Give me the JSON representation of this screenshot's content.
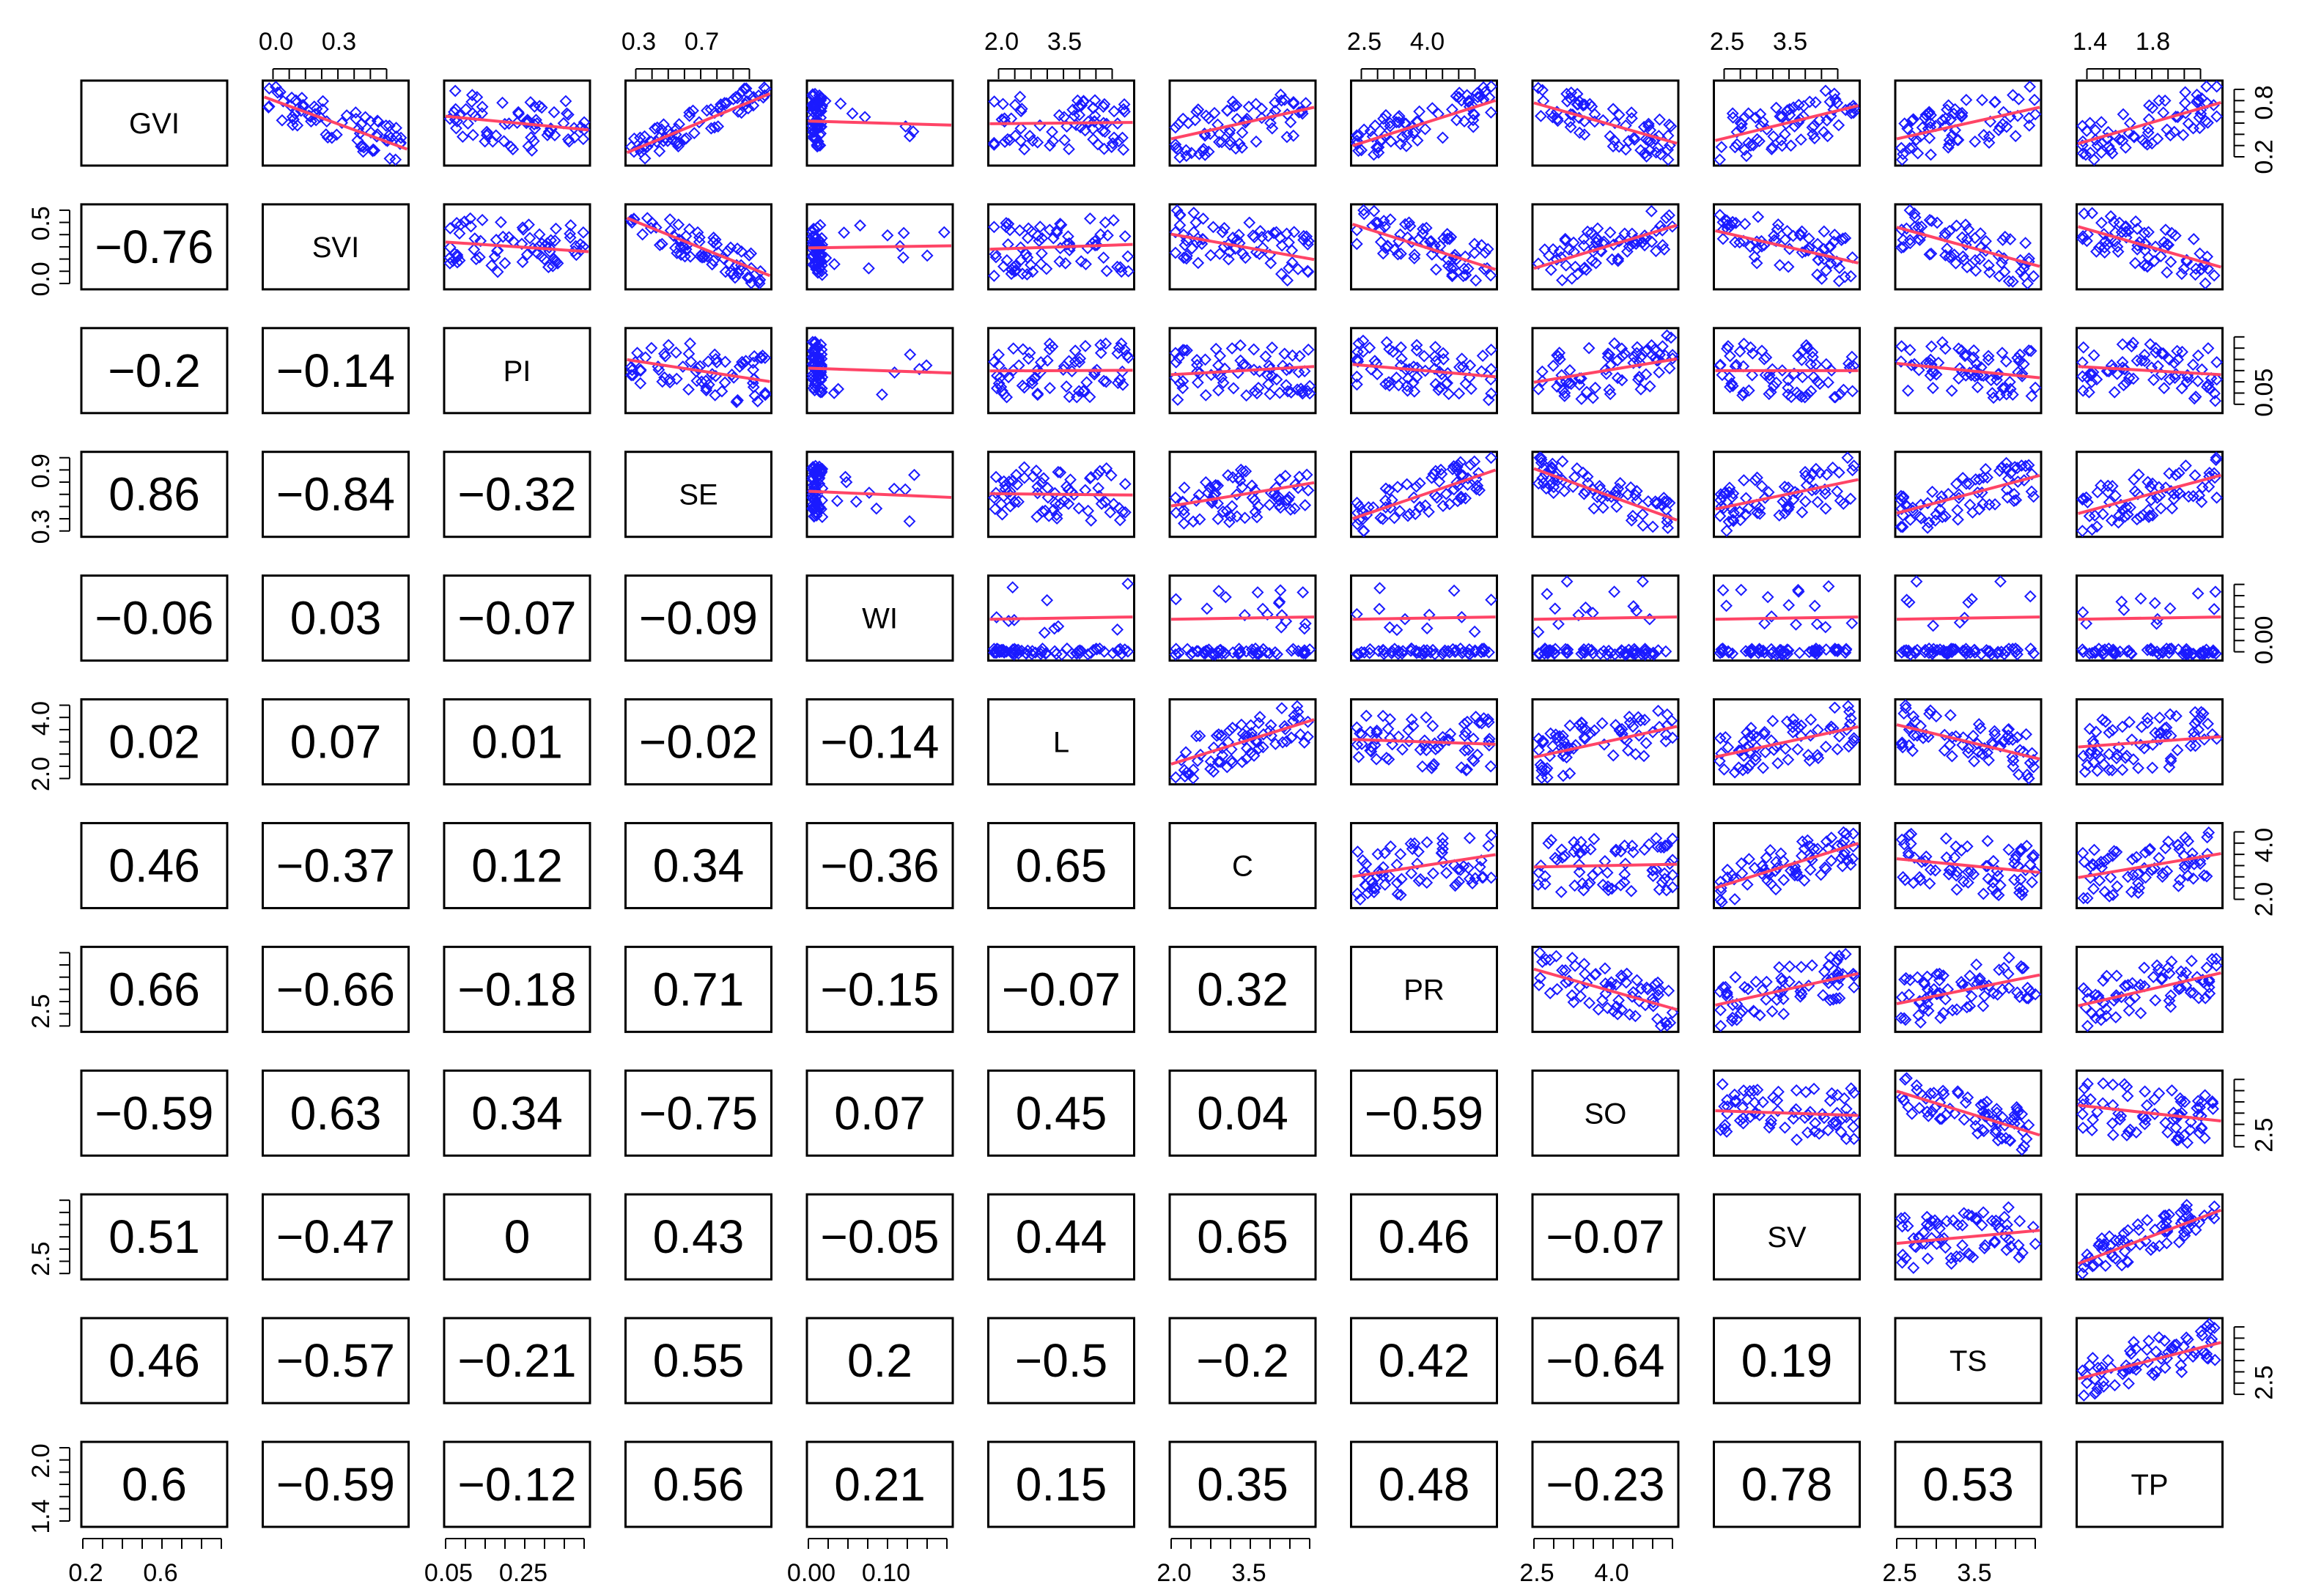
{
  "chart_data": {
    "type": "scatter",
    "variables": [
      "GVI",
      "SVI",
      "PI",
      "SE",
      "WI",
      "L",
      "C",
      "PR",
      "SO",
      "SV",
      "TS",
      "TP"
    ],
    "axis_labels": [
      [
        "0.2",
        "0.6"
      ],
      [
        "0.0",
        "0.3"
      ],
      [
        "0.05",
        "0.25"
      ],
      [
        "0.3",
        "0.7"
      ],
      [
        "0.00",
        "0.10"
      ],
      [
        "2.0",
        "3.5"
      ],
      [
        "2.0",
        "3.5"
      ],
      [
        "2.5",
        "4.0"
      ],
      [
        "2.5",
        "4.0"
      ],
      [
        "2.5",
        "3.5"
      ],
      [
        "2.5",
        "3.5"
      ],
      [
        "1.4",
        "1.8"
      ]
    ],
    "right_axis_labels": {
      "GVI": [
        "0.2",
        "0.8"
      ],
      "PI": [
        "0.05"
      ],
      "WI": [
        "0.00"
      ],
      "C": [
        "2.0",
        "4.0"
      ],
      "SO": [
        "2.5"
      ],
      "TS": [
        "2.5"
      ]
    },
    "left_axis_labels": {
      "SVI": [
        "0.0",
        "0.5"
      ],
      "SE": [
        "0.3",
        "0.9"
      ],
      "L": [
        "2.0",
        "4.0"
      ],
      "PR": [
        "2.5"
      ],
      "SV": [
        "2.5"
      ],
      "TP": [
        "1.4",
        "2.0"
      ]
    },
    "correlations": [
      {
        "row": "SVI",
        "col": "GVI",
        "r": "−0.76"
      },
      {
        "row": "PI",
        "col": "GVI",
        "r": "−0.2"
      },
      {
        "row": "PI",
        "col": "SVI",
        "r": "−0.14"
      },
      {
        "row": "SE",
        "col": "GVI",
        "r": "0.86"
      },
      {
        "row": "SE",
        "col": "SVI",
        "r": "−0.84"
      },
      {
        "row": "SE",
        "col": "PI",
        "r": "−0.32"
      },
      {
        "row": "WI",
        "col": "GVI",
        "r": "−0.06"
      },
      {
        "row": "WI",
        "col": "SVI",
        "r": "0.03"
      },
      {
        "row": "WI",
        "col": "PI",
        "r": "−0.07"
      },
      {
        "row": "WI",
        "col": "SE",
        "r": "−0.09"
      },
      {
        "row": "L",
        "col": "GVI",
        "r": "0.02"
      },
      {
        "row": "L",
        "col": "SVI",
        "r": "0.07"
      },
      {
        "row": "L",
        "col": "PI",
        "r": "0.01"
      },
      {
        "row": "L",
        "col": "SE",
        "r": "−0.02"
      },
      {
        "row": "L",
        "col": "WI",
        "r": "−0.14"
      },
      {
        "row": "C",
        "col": "GVI",
        "r": "0.46"
      },
      {
        "row": "C",
        "col": "SVI",
        "r": "−0.37"
      },
      {
        "row": "C",
        "col": "PI",
        "r": "0.12"
      },
      {
        "row": "C",
        "col": "SE",
        "r": "0.34"
      },
      {
        "row": "C",
        "col": "WI",
        "r": "−0.36"
      },
      {
        "row": "C",
        "col": "L",
        "r": "0.65"
      },
      {
        "row": "PR",
        "col": "GVI",
        "r": "0.66"
      },
      {
        "row": "PR",
        "col": "SVI",
        "r": "−0.66"
      },
      {
        "row": "PR",
        "col": "PI",
        "r": "−0.18"
      },
      {
        "row": "PR",
        "col": "SE",
        "r": "0.71"
      },
      {
        "row": "PR",
        "col": "WI",
        "r": "−0.15"
      },
      {
        "row": "PR",
        "col": "L",
        "r": "−0.07"
      },
      {
        "row": "PR",
        "col": "C",
        "r": "0.32"
      },
      {
        "row": "SO",
        "col": "GVI",
        "r": "−0.59"
      },
      {
        "row": "SO",
        "col": "SVI",
        "r": "0.63"
      },
      {
        "row": "SO",
        "col": "PI",
        "r": "0.34"
      },
      {
        "row": "SO",
        "col": "SE",
        "r": "−0.75"
      },
      {
        "row": "SO",
        "col": "WI",
        "r": "0.07"
      },
      {
        "row": "SO",
        "col": "L",
        "r": "0.45"
      },
      {
        "row": "SO",
        "col": "C",
        "r": "0.04"
      },
      {
        "row": "SO",
        "col": "PR",
        "r": "−0.59"
      },
      {
        "row": "SV",
        "col": "GVI",
        "r": "0.51"
      },
      {
        "row": "SV",
        "col": "SVI",
        "r": "−0.47"
      },
      {
        "row": "SV",
        "col": "PI",
        "r": "0"
      },
      {
        "row": "SV",
        "col": "SE",
        "r": "0.43"
      },
      {
        "row": "SV",
        "col": "WI",
        "r": "−0.05"
      },
      {
        "row": "SV",
        "col": "L",
        "r": "0.44"
      },
      {
        "row": "SV",
        "col": "C",
        "r": "0.65"
      },
      {
        "row": "SV",
        "col": "PR",
        "r": "0.46"
      },
      {
        "row": "SV",
        "col": "SO",
        "r": "−0.07"
      },
      {
        "row": "TS",
        "col": "GVI",
        "r": "0.46"
      },
      {
        "row": "TS",
        "col": "SVI",
        "r": "−0.57"
      },
      {
        "row": "TS",
        "col": "PI",
        "r": "−0.21"
      },
      {
        "row": "TS",
        "col": "SE",
        "r": "0.55"
      },
      {
        "row": "TS",
        "col": "WI",
        "r": "0.2"
      },
      {
        "row": "TS",
        "col": "L",
        "r": "−0.5"
      },
      {
        "row": "TS",
        "col": "C",
        "r": "−0.2"
      },
      {
        "row": "TS",
        "col": "PR",
        "r": "0.42"
      },
      {
        "row": "TS",
        "col": "SO",
        "r": "−0.64"
      },
      {
        "row": "TS",
        "col": "SV",
        "r": "0.19"
      },
      {
        "row": "TP",
        "col": "GVI",
        "r": "0.6"
      },
      {
        "row": "TP",
        "col": "SVI",
        "r": "−0.59"
      },
      {
        "row": "TP",
        "col": "PI",
        "r": "−0.12"
      },
      {
        "row": "TP",
        "col": "SE",
        "r": "0.56"
      },
      {
        "row": "TP",
        "col": "WI",
        "r": "0.21"
      },
      {
        "row": "TP",
        "col": "L",
        "r": "0.15"
      },
      {
        "row": "TP",
        "col": "C",
        "r": "0.35"
      },
      {
        "row": "TP",
        "col": "PR",
        "r": "0.48"
      },
      {
        "row": "TP",
        "col": "SO",
        "r": "−0.23"
      },
      {
        "row": "TP",
        "col": "SV",
        "r": "0.78"
      },
      {
        "row": "TP",
        "col": "TS",
        "r": "0.53"
      }
    ],
    "point_color": "#1a1aff",
    "fit_line_color": "#ff4466",
    "box_color": "#000000"
  }
}
